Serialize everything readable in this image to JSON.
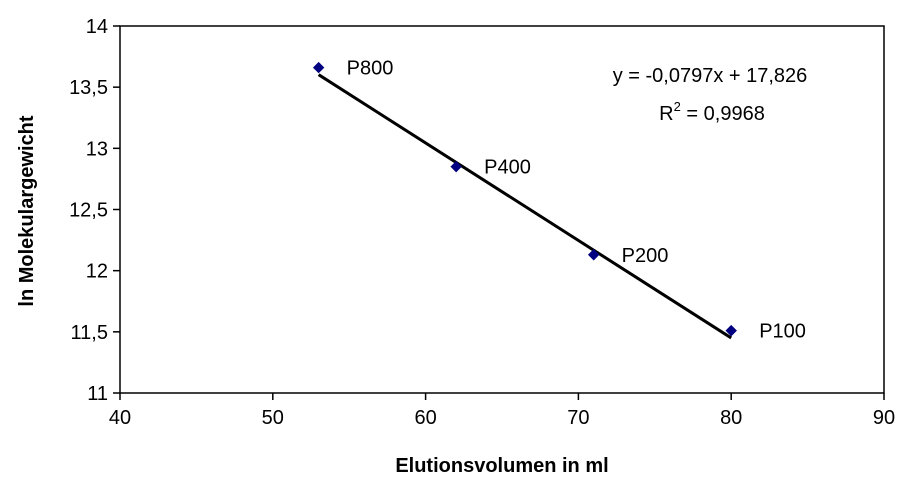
{
  "chart_data": {
    "type": "scatter",
    "xlabel": "Elutionsvolumen in ml",
    "ylabel": "ln Molekulargewicht",
    "xlim": [
      40,
      90
    ],
    "ylim": [
      11,
      14
    ],
    "x_ticks": [
      40,
      50,
      60,
      70,
      80,
      90
    ],
    "y_ticks": [
      11,
      11.5,
      12,
      12.5,
      13,
      13.5,
      14
    ],
    "x_tick_labels": [
      "40",
      "50",
      "60",
      "70",
      "80",
      "90"
    ],
    "y_tick_labels": [
      "11",
      "11,5",
      "12",
      "12,5",
      "13",
      "13,5",
      "14"
    ],
    "grid": false,
    "legend": "none",
    "marker_color": "#000080",
    "trendline_color": "#000000",
    "points": [
      {
        "x": 53,
        "y": 13.66,
        "label": "P800"
      },
      {
        "x": 62,
        "y": 12.85,
        "label": "P400"
      },
      {
        "x": 71,
        "y": 12.13,
        "label": "P200"
      },
      {
        "x": 80,
        "y": 11.51,
        "label": "P100"
      }
    ],
    "trendline": {
      "slope": -0.0797,
      "intercept": 17.826,
      "x_range": [
        53,
        80
      ],
      "equation_text": "y = -0,0797x + 17,826",
      "r2_prefix": "R",
      "r2_sup": "2",
      "r2_suffix": " = 0,9968"
    }
  }
}
